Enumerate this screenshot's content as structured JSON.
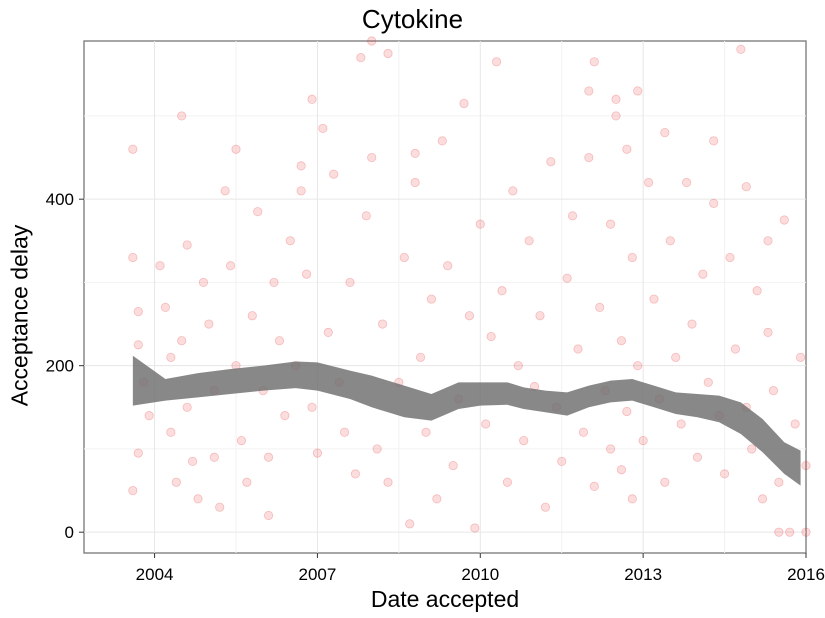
{
  "chart_data": {
    "type": "scatter",
    "title": "Cytokine",
    "xlabel": "Date accepted",
    "ylabel": "Acceptance delay",
    "xlim": [
      2002.7,
      2016.0
    ],
    "ylim": [
      -25,
      590
    ],
    "x_ticks": [
      2004,
      2007,
      2010,
      2013,
      2016
    ],
    "y_ticks": [
      0,
      200,
      400
    ],
    "grid": true,
    "point_color": "#e41a1c",
    "point_alpha": 0.15,
    "smooth_color": "#6e6e6e",
    "scatter_sampled": [
      [
        2003.6,
        460
      ],
      [
        2003.6,
        330
      ],
      [
        2003.7,
        265
      ],
      [
        2003.7,
        225
      ],
      [
        2003.8,
        180
      ],
      [
        2003.7,
        95
      ],
      [
        2003.6,
        50
      ],
      [
        2003.9,
        140
      ],
      [
        2004.1,
        320
      ],
      [
        2004.2,
        270
      ],
      [
        2004.3,
        210
      ],
      [
        2004.3,
        120
      ],
      [
        2004.4,
        60
      ],
      [
        2004.5,
        500
      ],
      [
        2004.6,
        345
      ],
      [
        2004.5,
        230
      ],
      [
        2004.6,
        150
      ],
      [
        2004.7,
        85
      ],
      [
        2004.8,
        40
      ],
      [
        2004.9,
        300
      ],
      [
        2005.0,
        250
      ],
      [
        2005.1,
        170
      ],
      [
        2005.1,
        90
      ],
      [
        2005.2,
        30
      ],
      [
        2005.3,
        410
      ],
      [
        2005.4,
        320
      ],
      [
        2005.5,
        460
      ],
      [
        2005.5,
        200
      ],
      [
        2005.6,
        110
      ],
      [
        2005.7,
        60
      ],
      [
        2005.8,
        260
      ],
      [
        2005.9,
        385
      ],
      [
        2006.0,
        170
      ],
      [
        2006.1,
        20
      ],
      [
        2006.1,
        90
      ],
      [
        2006.2,
        300
      ],
      [
        2006.3,
        230
      ],
      [
        2006.4,
        140
      ],
      [
        2006.5,
        350
      ],
      [
        2006.6,
        200
      ],
      [
        2006.7,
        440
      ],
      [
        2006.7,
        410
      ],
      [
        2006.8,
        310
      ],
      [
        2006.9,
        520
      ],
      [
        2006.9,
        150
      ],
      [
        2007.0,
        95
      ],
      [
        2007.1,
        485
      ],
      [
        2007.2,
        240
      ],
      [
        2007.3,
        430
      ],
      [
        2007.4,
        180
      ],
      [
        2007.5,
        120
      ],
      [
        2007.6,
        300
      ],
      [
        2007.7,
        70
      ],
      [
        2007.8,
        570
      ],
      [
        2007.9,
        380
      ],
      [
        2008.0,
        590
      ],
      [
        2008.0,
        450
      ],
      [
        2008.1,
        100
      ],
      [
        2008.2,
        250
      ],
      [
        2008.3,
        60
      ],
      [
        2008.3,
        575
      ],
      [
        2008.5,
        180
      ],
      [
        2008.6,
        330
      ],
      [
        2008.7,
        10
      ],
      [
        2008.8,
        455
      ],
      [
        2008.8,
        420
      ],
      [
        2008.9,
        210
      ],
      [
        2009.0,
        120
      ],
      [
        2009.1,
        280
      ],
      [
        2009.2,
        40
      ],
      [
        2009.3,
        470
      ],
      [
        2009.4,
        320
      ],
      [
        2009.5,
        80
      ],
      [
        2009.6,
        160
      ],
      [
        2009.7,
        515
      ],
      [
        2009.8,
        260
      ],
      [
        2009.9,
        5
      ],
      [
        2010.0,
        370
      ],
      [
        2010.1,
        130
      ],
      [
        2010.2,
        235
      ],
      [
        2010.3,
        565
      ],
      [
        2010.4,
        290
      ],
      [
        2010.5,
        60
      ],
      [
        2010.6,
        410
      ],
      [
        2010.7,
        200
      ],
      [
        2010.8,
        110
      ],
      [
        2010.9,
        350
      ],
      [
        2011.0,
        175
      ],
      [
        2011.1,
        260
      ],
      [
        2011.2,
        30
      ],
      [
        2011.3,
        445
      ],
      [
        2011.4,
        150
      ],
      [
        2011.5,
        85
      ],
      [
        2011.6,
        305
      ],
      [
        2011.7,
        380
      ],
      [
        2011.8,
        220
      ],
      [
        2011.9,
        120
      ],
      [
        2012.0,
        450
      ],
      [
        2012.0,
        530
      ],
      [
        2012.1,
        55
      ],
      [
        2012.1,
        565
      ],
      [
        2012.2,
        270
      ],
      [
        2012.3,
        170
      ],
      [
        2012.4,
        370
      ],
      [
        2012.4,
        100
      ],
      [
        2012.5,
        520
      ],
      [
        2012.5,
        500
      ],
      [
        2012.6,
        230
      ],
      [
        2012.6,
        75
      ],
      [
        2012.7,
        460
      ],
      [
        2012.7,
        145
      ],
      [
        2012.8,
        330
      ],
      [
        2012.8,
        40
      ],
      [
        2012.9,
        530
      ],
      [
        2012.9,
        200
      ],
      [
        2013.0,
        110
      ],
      [
        2013.1,
        420
      ],
      [
        2013.2,
        280
      ],
      [
        2013.3,
        160
      ],
      [
        2013.4,
        480
      ],
      [
        2013.4,
        60
      ],
      [
        2013.5,
        350
      ],
      [
        2013.6,
        210
      ],
      [
        2013.7,
        130
      ],
      [
        2013.8,
        420
      ],
      [
        2013.9,
        250
      ],
      [
        2014.0,
        90
      ],
      [
        2014.1,
        310
      ],
      [
        2014.2,
        180
      ],
      [
        2014.3,
        470
      ],
      [
        2014.3,
        395
      ],
      [
        2014.4,
        140
      ],
      [
        2014.5,
        70
      ],
      [
        2014.6,
        330
      ],
      [
        2014.7,
        220
      ],
      [
        2014.8,
        580
      ],
      [
        2014.9,
        415
      ],
      [
        2014.9,
        150
      ],
      [
        2015.0,
        100
      ],
      [
        2015.1,
        290
      ],
      [
        2015.2,
        40
      ],
      [
        2015.3,
        350
      ],
      [
        2015.3,
        240
      ],
      [
        2015.4,
        170
      ],
      [
        2015.5,
        60
      ],
      [
        2015.6,
        375
      ],
      [
        2015.7,
        0
      ],
      [
        2015.8,
        130
      ],
      [
        2015.9,
        210
      ],
      [
        2016.0,
        80
      ],
      [
        2015.5,
        0
      ],
      [
        2016.0,
        0
      ]
    ],
    "smooth_upper": [
      [
        2003.6,
        212
      ],
      [
        2004.2,
        184
      ],
      [
        2004.8,
        191
      ],
      [
        2005.4,
        196
      ],
      [
        2006.0,
        200
      ],
      [
        2006.6,
        205
      ],
      [
        2007.0,
        204
      ],
      [
        2007.6,
        194
      ],
      [
        2008.0,
        188
      ],
      [
        2008.6,
        176
      ],
      [
        2009.1,
        166
      ],
      [
        2009.6,
        180
      ],
      [
        2010.0,
        180
      ],
      [
        2010.5,
        180
      ],
      [
        2010.8,
        174
      ],
      [
        2011.2,
        170
      ],
      [
        2011.6,
        168
      ],
      [
        2012.0,
        176
      ],
      [
        2012.4,
        182
      ],
      [
        2012.8,
        184
      ],
      [
        2013.2,
        176
      ],
      [
        2013.6,
        168
      ],
      [
        2014.0,
        166
      ],
      [
        2014.4,
        164
      ],
      [
        2014.8,
        156
      ],
      [
        2015.2,
        136
      ],
      [
        2015.6,
        108
      ],
      [
        2015.9,
        98
      ]
    ],
    "smooth_lower": [
      [
        2003.6,
        152
      ],
      [
        2004.2,
        158
      ],
      [
        2004.8,
        162
      ],
      [
        2005.4,
        166
      ],
      [
        2006.0,
        170
      ],
      [
        2006.6,
        173
      ],
      [
        2007.0,
        170
      ],
      [
        2007.6,
        160
      ],
      [
        2008.0,
        150
      ],
      [
        2008.6,
        138
      ],
      [
        2009.1,
        134
      ],
      [
        2009.6,
        148
      ],
      [
        2010.0,
        152
      ],
      [
        2010.5,
        153
      ],
      [
        2010.8,
        148
      ],
      [
        2011.2,
        144
      ],
      [
        2011.6,
        140
      ],
      [
        2012.0,
        150
      ],
      [
        2012.4,
        156
      ],
      [
        2012.8,
        158
      ],
      [
        2013.2,
        150
      ],
      [
        2013.6,
        142
      ],
      [
        2014.0,
        138
      ],
      [
        2014.4,
        132
      ],
      [
        2014.8,
        118
      ],
      [
        2015.2,
        96
      ],
      [
        2015.6,
        70
      ],
      [
        2015.9,
        56
      ]
    ]
  }
}
